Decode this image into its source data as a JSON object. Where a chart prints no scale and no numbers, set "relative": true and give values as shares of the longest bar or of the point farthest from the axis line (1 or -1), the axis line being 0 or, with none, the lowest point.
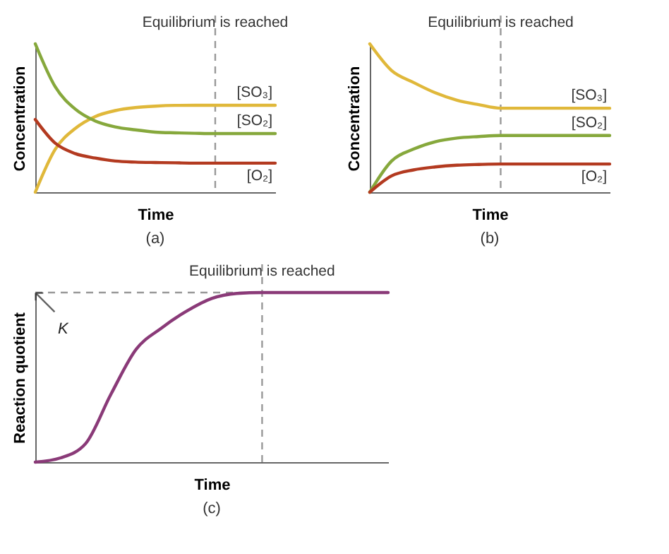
{
  "chart_data": [
    {
      "type": "line",
      "title": "(a)",
      "xlabel": "Time",
      "ylabel": "Concentration",
      "relative": true,
      "grid": false,
      "annotations": [
        "Equilibrium is reached"
      ],
      "categories": [
        null,
        null,
        null,
        null,
        null,
        null,
        null,
        null,
        null,
        null,
        null,
        null,
        null
      ],
      "series": [
        {
          "name": "[SO₃]",
          "color": "#e0b83a",
          "values": [
            0,
            0.29,
            0.43,
            0.51,
            0.55,
            0.57,
            0.58,
            0.585,
            0.586,
            0.586,
            0.586,
            0.586,
            0.586
          ]
        },
        {
          "name": "[SO₂]",
          "color": "#86a83c",
          "values": [
            1,
            0.71,
            0.56,
            0.48,
            0.44,
            0.42,
            0.405,
            0.4,
            0.397,
            0.395,
            0.395,
            0.395,
            0.395
          ]
        },
        {
          "name": "[O₂]",
          "color": "#b33a20",
          "values": [
            0.49,
            0.33,
            0.26,
            0.23,
            0.21,
            0.203,
            0.2,
            0.198,
            0.196,
            0.196,
            0.196,
            0.196,
            0.196
          ]
        }
      ]
    },
    {
      "type": "line",
      "title": "(b)",
      "xlabel": "Time",
      "ylabel": "Concentration",
      "relative": true,
      "grid": false,
      "annotations": [
        "Equilibrium is reached"
      ],
      "categories": [
        null,
        null,
        null,
        null,
        null,
        null,
        null,
        null,
        null,
        null,
        null,
        null
      ],
      "series": [
        {
          "name": "[SO₃]",
          "color": "#e0b83a",
          "values": [
            1,
            0.82,
            0.74,
            0.67,
            0.62,
            0.59,
            0.566,
            0.566,
            0.566,
            0.566,
            0.566,
            0.566
          ]
        },
        {
          "name": "[SO₂]",
          "color": "#86a83c",
          "values": [
            0,
            0.21,
            0.29,
            0.34,
            0.365,
            0.375,
            0.382,
            0.382,
            0.382,
            0.382,
            0.382,
            0.382
          ]
        },
        {
          "name": "[O₂]",
          "color": "#b33a20",
          "values": [
            0,
            0.11,
            0.15,
            0.17,
            0.182,
            0.187,
            0.19,
            0.19,
            0.19,
            0.19,
            0.19,
            0.19
          ]
        }
      ]
    },
    {
      "type": "line",
      "title": "(c)",
      "xlabel": "Time",
      "ylabel": "Reaction quotient",
      "relative": true,
      "grid": false,
      "annotations": [
        "Equilibrium is reached",
        "K"
      ],
      "categories": [
        null,
        null,
        null,
        null,
        null,
        null,
        null,
        null,
        null,
        null,
        null,
        null,
        null,
        null,
        null
      ],
      "series": [
        {
          "color": "#8a3a78",
          "values": [
            0,
            0.025,
            0.11,
            0.4,
            0.665,
            0.79,
            0.89,
            0.965,
            0.995,
            1,
            1,
            1,
            1,
            1,
            1
          ]
        }
      ]
    }
  ]
}
